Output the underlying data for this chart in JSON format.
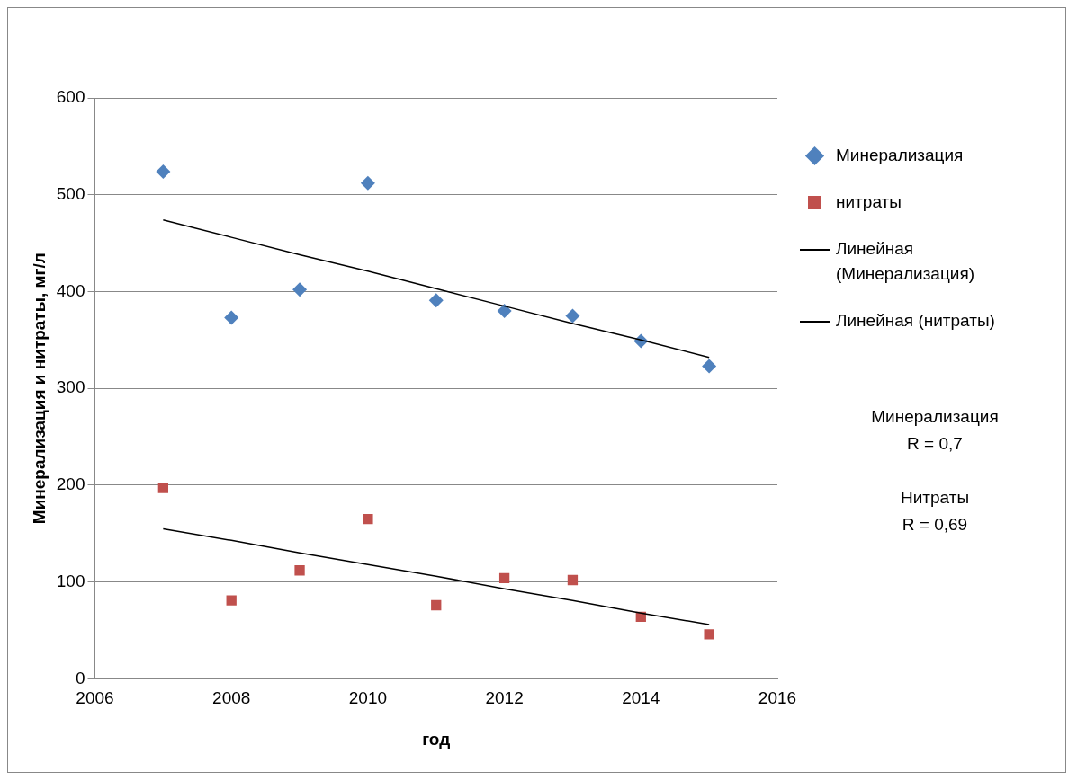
{
  "chart_data": {
    "type": "scatter",
    "xlabel": "год",
    "ylabel": "Минерализация и нитраты, мг/л",
    "xlim": [
      2006,
      2016
    ],
    "xticks": [
      2006,
      2008,
      2010,
      2012,
      2014,
      2016
    ],
    "ylim": [
      0,
      600
    ],
    "yticks": [
      0,
      100,
      200,
      300,
      400,
      500,
      600
    ],
    "grid": "y",
    "legend": "right",
    "x": [
      2007,
      2008,
      2009,
      2010,
      2011,
      2012,
      2013,
      2014,
      2015
    ],
    "series": [
      {
        "name": "Минерализация",
        "color": "#4f81bd",
        "marker": "diamond",
        "values": [
          524,
          373,
          402,
          512,
          391,
          380,
          375,
          349,
          323
        ]
      },
      {
        "name": "нитраты",
        "color": "#c0504d",
        "marker": "square",
        "values": [
          197,
          81,
          112,
          165,
          76,
          104,
          102,
          64,
          46
        ]
      },
      {
        "name": "Линейная (Минерализация)",
        "type": "line",
        "color": "#000000",
        "marker": "none",
        "values": [
          474,
          456,
          438,
          421,
          403,
          385,
          367,
          350,
          332
        ]
      },
      {
        "name": "Линейная (нитраты)",
        "type": "line",
        "color": "#000000",
        "marker": "none",
        "values": [
          155,
          143,
          130,
          118,
          106,
          93,
          81,
          68,
          56
        ]
      }
    ],
    "annotations": [
      "Минерализация\nR = 0,7",
      "Нитраты\nR = 0,69"
    ]
  }
}
